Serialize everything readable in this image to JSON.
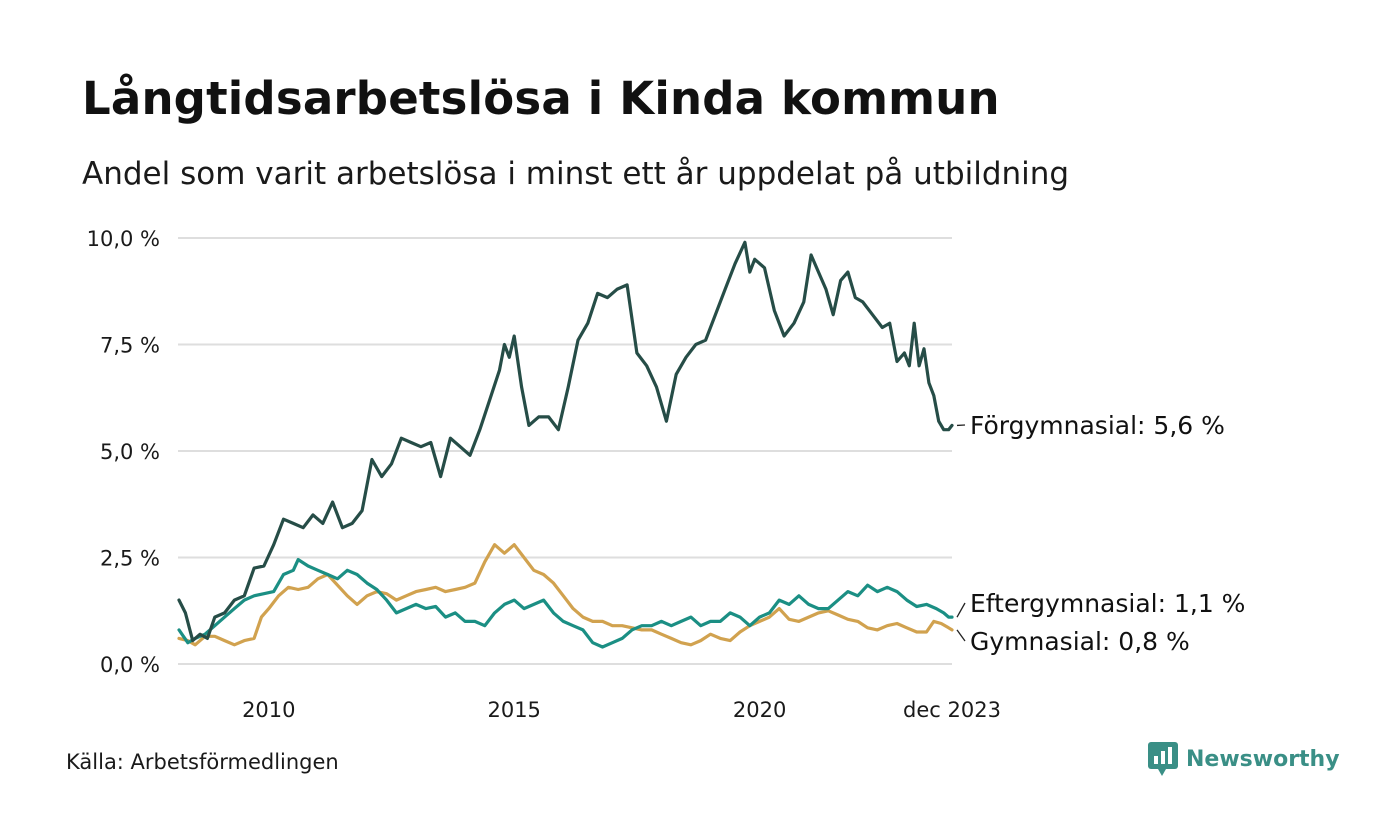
{
  "title": "Långtidsarbetslösa i Kinda kommun",
  "subtitle": "Andel som varit arbetslösa i minst ett år uppdelat på utbildning",
  "source": "Källa: Arbetsförmedlingen",
  "brand": {
    "name": "Newsworthy",
    "icon": "newsworthy-logo-icon",
    "color": "#3a8f86"
  },
  "chart_data": {
    "type": "line",
    "title": "Långtidsarbetslösa i Kinda kommun",
    "subtitle": "Andel som varit arbetslösa i minst ett år uppdelat på utbildning",
    "xlabel": "",
    "ylabel": "",
    "xlim": [
      2008.15,
      2023.92
    ],
    "ylim": [
      0,
      10
    ],
    "y_ticks": [
      {
        "value": 0,
        "label": "0,0 %"
      },
      {
        "value": 2.5,
        "label": "2,5 %"
      },
      {
        "value": 5,
        "label": "5,0 %"
      },
      {
        "value": 7.5,
        "label": "7,5 %"
      },
      {
        "value": 10,
        "label": "10,0 %"
      }
    ],
    "x_ticks": [
      {
        "value": 2010,
        "label": "2010"
      },
      {
        "value": 2015,
        "label": "2015"
      },
      {
        "value": 2020,
        "label": "2020"
      },
      {
        "value": 2023.92,
        "label": "dec 2023"
      }
    ],
    "grid": true,
    "series": [
      {
        "name": "Förgymnasial",
        "color": "#264d47",
        "end_label": "Förgymnasial: 5,6 %",
        "points": [
          [
            2008.17,
            1.5
          ],
          [
            2008.3,
            1.2
          ],
          [
            2008.45,
            0.55
          ],
          [
            2008.6,
            0.7
          ],
          [
            2008.75,
            0.6
          ],
          [
            2008.9,
            1.1
          ],
          [
            2009.1,
            1.2
          ],
          [
            2009.3,
            1.5
          ],
          [
            2009.5,
            1.6
          ],
          [
            2009.7,
            2.25
          ],
          [
            2009.9,
            2.3
          ],
          [
            2010.1,
            2.8
          ],
          [
            2010.3,
            3.4
          ],
          [
            2010.5,
            3.3
          ],
          [
            2010.7,
            3.2
          ],
          [
            2010.9,
            3.5
          ],
          [
            2011.1,
            3.3
          ],
          [
            2011.3,
            3.8
          ],
          [
            2011.5,
            3.2
          ],
          [
            2011.7,
            3.3
          ],
          [
            2011.9,
            3.6
          ],
          [
            2012.1,
            4.8
          ],
          [
            2012.3,
            4.4
          ],
          [
            2012.5,
            4.7
          ],
          [
            2012.7,
            5.3
          ],
          [
            2012.9,
            5.2
          ],
          [
            2013.1,
            5.1
          ],
          [
            2013.3,
            5.2
          ],
          [
            2013.5,
            4.4
          ],
          [
            2013.7,
            5.3
          ],
          [
            2013.9,
            5.1
          ],
          [
            2014.1,
            4.9
          ],
          [
            2014.3,
            5.5
          ],
          [
            2014.5,
            6.2
          ],
          [
            2014.7,
            6.9
          ],
          [
            2014.8,
            7.5
          ],
          [
            2014.9,
            7.2
          ],
          [
            2015.0,
            7.7
          ],
          [
            2015.15,
            6.5
          ],
          [
            2015.3,
            5.6
          ],
          [
            2015.5,
            5.8
          ],
          [
            2015.7,
            5.8
          ],
          [
            2015.9,
            5.5
          ],
          [
            2016.1,
            6.5
          ],
          [
            2016.3,
            7.6
          ],
          [
            2016.5,
            8.0
          ],
          [
            2016.7,
            8.7
          ],
          [
            2016.9,
            8.6
          ],
          [
            2017.1,
            8.8
          ],
          [
            2017.3,
            8.9
          ],
          [
            2017.5,
            7.3
          ],
          [
            2017.7,
            7.0
          ],
          [
            2017.9,
            6.5
          ],
          [
            2018.1,
            5.7
          ],
          [
            2018.3,
            6.8
          ],
          [
            2018.5,
            7.2
          ],
          [
            2018.7,
            7.5
          ],
          [
            2018.9,
            7.6
          ],
          [
            2019.1,
            8.2
          ],
          [
            2019.3,
            8.8
          ],
          [
            2019.5,
            9.4
          ],
          [
            2019.7,
            9.9
          ],
          [
            2019.8,
            9.2
          ],
          [
            2019.9,
            9.5
          ],
          [
            2020.1,
            9.3
          ],
          [
            2020.3,
            8.3
          ],
          [
            2020.5,
            7.7
          ],
          [
            2020.7,
            8.0
          ],
          [
            2020.9,
            8.5
          ],
          [
            2021.05,
            9.6
          ],
          [
            2021.2,
            9.2
          ],
          [
            2021.35,
            8.8
          ],
          [
            2021.5,
            8.2
          ],
          [
            2021.65,
            9.0
          ],
          [
            2021.8,
            9.2
          ],
          [
            2021.95,
            8.6
          ],
          [
            2022.1,
            8.5
          ],
          [
            2022.3,
            8.2
          ],
          [
            2022.5,
            7.9
          ],
          [
            2022.65,
            8.0
          ],
          [
            2022.8,
            7.1
          ],
          [
            2022.95,
            7.3
          ],
          [
            2023.05,
            7.0
          ],
          [
            2023.15,
            8.0
          ],
          [
            2023.25,
            7.0
          ],
          [
            2023.35,
            7.4
          ],
          [
            2023.45,
            6.6
          ],
          [
            2023.55,
            6.3
          ],
          [
            2023.65,
            5.7
          ],
          [
            2023.75,
            5.5
          ],
          [
            2023.85,
            5.5
          ],
          [
            2023.92,
            5.6
          ]
        ]
      },
      {
        "name": "Eftergymnasial",
        "color": "#1b8f84",
        "end_label": "Eftergymnasial: 1,1 %",
        "points": [
          [
            2008.17,
            0.8
          ],
          [
            2008.35,
            0.5
          ],
          [
            2008.5,
            0.6
          ],
          [
            2008.7,
            0.7
          ],
          [
            2008.9,
            0.9
          ],
          [
            2009.1,
            1.1
          ],
          [
            2009.3,
            1.3
          ],
          [
            2009.5,
            1.5
          ],
          [
            2009.7,
            1.6
          ],
          [
            2009.9,
            1.65
          ],
          [
            2010.1,
            1.7
          ],
          [
            2010.3,
            2.1
          ],
          [
            2010.5,
            2.2
          ],
          [
            2010.6,
            2.45
          ],
          [
            2010.8,
            2.3
          ],
          [
            2011.0,
            2.2
          ],
          [
            2011.2,
            2.1
          ],
          [
            2011.4,
            2.0
          ],
          [
            2011.6,
            2.2
          ],
          [
            2011.8,
            2.1
          ],
          [
            2012.0,
            1.9
          ],
          [
            2012.2,
            1.75
          ],
          [
            2012.4,
            1.5
          ],
          [
            2012.6,
            1.2
          ],
          [
            2012.8,
            1.3
          ],
          [
            2013.0,
            1.4
          ],
          [
            2013.2,
            1.3
          ],
          [
            2013.4,
            1.35
          ],
          [
            2013.6,
            1.1
          ],
          [
            2013.8,
            1.2
          ],
          [
            2014.0,
            1.0
          ],
          [
            2014.2,
            1.0
          ],
          [
            2014.4,
            0.9
          ],
          [
            2014.6,
            1.2
          ],
          [
            2014.8,
            1.4
          ],
          [
            2015.0,
            1.5
          ],
          [
            2015.2,
            1.3
          ],
          [
            2015.4,
            1.4
          ],
          [
            2015.6,
            1.5
          ],
          [
            2015.8,
            1.2
          ],
          [
            2016.0,
            1.0
          ],
          [
            2016.2,
            0.9
          ],
          [
            2016.4,
            0.8
          ],
          [
            2016.6,
            0.5
          ],
          [
            2016.8,
            0.4
          ],
          [
            2017.0,
            0.5
          ],
          [
            2017.2,
            0.6
          ],
          [
            2017.4,
            0.8
          ],
          [
            2017.6,
            0.9
          ],
          [
            2017.8,
            0.9
          ],
          [
            2018.0,
            1.0
          ],
          [
            2018.2,
            0.9
          ],
          [
            2018.4,
            1.0
          ],
          [
            2018.6,
            1.1
          ],
          [
            2018.8,
            0.9
          ],
          [
            2019.0,
            1.0
          ],
          [
            2019.2,
            1.0
          ],
          [
            2019.4,
            1.2
          ],
          [
            2019.6,
            1.1
          ],
          [
            2019.8,
            0.9
          ],
          [
            2020.0,
            1.1
          ],
          [
            2020.2,
            1.2
          ],
          [
            2020.4,
            1.5
          ],
          [
            2020.6,
            1.4
          ],
          [
            2020.8,
            1.6
          ],
          [
            2021.0,
            1.4
          ],
          [
            2021.2,
            1.3
          ],
          [
            2021.4,
            1.3
          ],
          [
            2021.6,
            1.5
          ],
          [
            2021.8,
            1.7
          ],
          [
            2022.0,
            1.6
          ],
          [
            2022.2,
            1.85
          ],
          [
            2022.4,
            1.7
          ],
          [
            2022.6,
            1.8
          ],
          [
            2022.8,
            1.7
          ],
          [
            2023.0,
            1.5
          ],
          [
            2023.2,
            1.35
          ],
          [
            2023.4,
            1.4
          ],
          [
            2023.6,
            1.3
          ],
          [
            2023.75,
            1.2
          ],
          [
            2023.85,
            1.1
          ],
          [
            2023.92,
            1.1
          ]
        ]
      },
      {
        "name": "Gymnasial",
        "color": "#d1a24f",
        "end_label": "Gymnasial: 0,8 %",
        "points": [
          [
            2008.17,
            0.6
          ],
          [
            2008.35,
            0.55
          ],
          [
            2008.5,
            0.45
          ],
          [
            2008.7,
            0.65
          ],
          [
            2008.9,
            0.65
          ],
          [
            2009.1,
            0.55
          ],
          [
            2009.3,
            0.45
          ],
          [
            2009.5,
            0.55
          ],
          [
            2009.7,
            0.6
          ],
          [
            2009.85,
            1.1
          ],
          [
            2010.0,
            1.3
          ],
          [
            2010.2,
            1.6
          ],
          [
            2010.4,
            1.8
          ],
          [
            2010.6,
            1.75
          ],
          [
            2010.8,
            1.8
          ],
          [
            2011.0,
            2.0
          ],
          [
            2011.2,
            2.1
          ],
          [
            2011.4,
            1.85
          ],
          [
            2011.6,
            1.6
          ],
          [
            2011.8,
            1.4
          ],
          [
            2012.0,
            1.6
          ],
          [
            2012.2,
            1.7
          ],
          [
            2012.4,
            1.65
          ],
          [
            2012.6,
            1.5
          ],
          [
            2012.8,
            1.6
          ],
          [
            2013.0,
            1.7
          ],
          [
            2013.2,
            1.75
          ],
          [
            2013.4,
            1.8
          ],
          [
            2013.6,
            1.7
          ],
          [
            2013.8,
            1.75
          ],
          [
            2014.0,
            1.8
          ],
          [
            2014.2,
            1.9
          ],
          [
            2014.4,
            2.4
          ],
          [
            2014.6,
            2.8
          ],
          [
            2014.8,
            2.6
          ],
          [
            2015.0,
            2.8
          ],
          [
            2015.2,
            2.5
          ],
          [
            2015.4,
            2.2
          ],
          [
            2015.6,
            2.1
          ],
          [
            2015.8,
            1.9
          ],
          [
            2016.0,
            1.6
          ],
          [
            2016.2,
            1.3
          ],
          [
            2016.4,
            1.1
          ],
          [
            2016.6,
            1.0
          ],
          [
            2016.8,
            1.0
          ],
          [
            2017.0,
            0.9
          ],
          [
            2017.2,
            0.9
          ],
          [
            2017.4,
            0.85
          ],
          [
            2017.6,
            0.8
          ],
          [
            2017.8,
            0.8
          ],
          [
            2018.0,
            0.7
          ],
          [
            2018.2,
            0.6
          ],
          [
            2018.4,
            0.5
          ],
          [
            2018.6,
            0.45
          ],
          [
            2018.8,
            0.55
          ],
          [
            2019.0,
            0.7
          ],
          [
            2019.2,
            0.6
          ],
          [
            2019.4,
            0.55
          ],
          [
            2019.6,
            0.75
          ],
          [
            2019.8,
            0.9
          ],
          [
            2020.0,
            1.0
          ],
          [
            2020.2,
            1.1
          ],
          [
            2020.4,
            1.3
          ],
          [
            2020.6,
            1.05
          ],
          [
            2020.8,
            1.0
          ],
          [
            2021.0,
            1.1
          ],
          [
            2021.2,
            1.2
          ],
          [
            2021.4,
            1.25
          ],
          [
            2021.6,
            1.15
          ],
          [
            2021.8,
            1.05
          ],
          [
            2022.0,
            1.0
          ],
          [
            2022.2,
            0.85
          ],
          [
            2022.4,
            0.8
          ],
          [
            2022.6,
            0.9
          ],
          [
            2022.8,
            0.95
          ],
          [
            2023.0,
            0.85
          ],
          [
            2023.2,
            0.75
          ],
          [
            2023.4,
            0.75
          ],
          [
            2023.55,
            1.0
          ],
          [
            2023.7,
            0.95
          ],
          [
            2023.85,
            0.85
          ],
          [
            2023.92,
            0.8
          ]
        ]
      }
    ]
  }
}
